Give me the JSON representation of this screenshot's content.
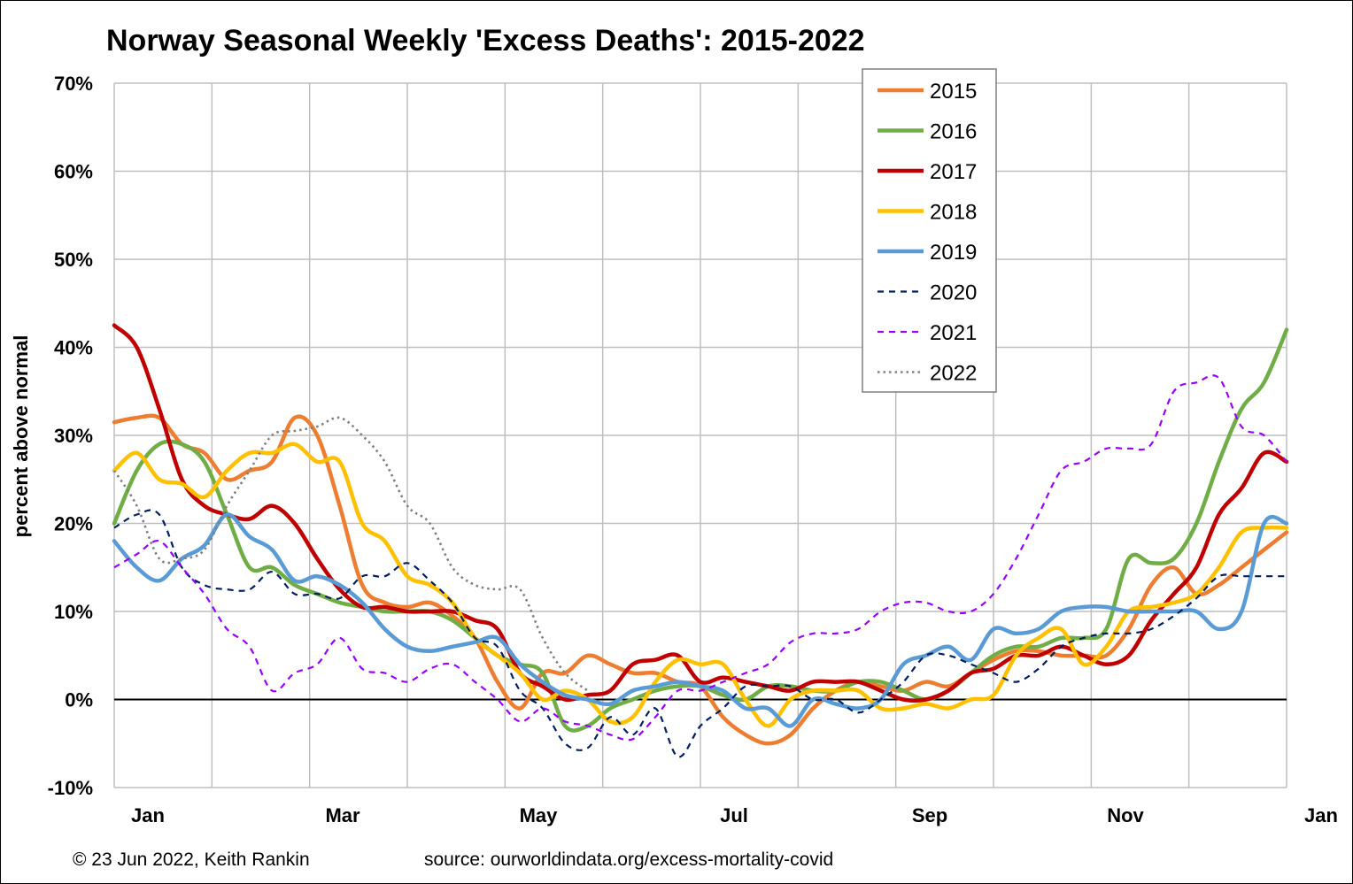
{
  "chart_data": {
    "type": "line",
    "title": "Norway Seasonal Weekly 'Excess Deaths': 2015-2022",
    "xlabel": "",
    "ylabel": "percent above normal",
    "x_ticks": [
      "Jan",
      "Mar",
      "May",
      "Jul",
      "Sep",
      "Nov",
      "Jan"
    ],
    "x_unit": "week of year",
    "xlim": [
      1,
      53
    ],
    "ylim": [
      -10,
      70
    ],
    "y_ticks": [
      "70%",
      "60%",
      "50%",
      "40%",
      "30%",
      "20%",
      "10%",
      "0%",
      "-10%"
    ],
    "grid": true,
    "legend_position": "top-right",
    "series": [
      {
        "name": "2015",
        "color": "#ED7D31",
        "style": "solid",
        "x": [
          1,
          2,
          3,
          4,
          5,
          6,
          7,
          8,
          9,
          10,
          11,
          12,
          13,
          14,
          15,
          16,
          17,
          18,
          19,
          20,
          21,
          22,
          23,
          24,
          25,
          26,
          27,
          28,
          29,
          30,
          31,
          32,
          33,
          34,
          35,
          36,
          37,
          38,
          39,
          40,
          41,
          42,
          43,
          44,
          45,
          46,
          47,
          48,
          49,
          50,
          51,
          52,
          53
        ],
        "y": [
          31.5,
          32,
          32,
          29,
          28,
          25,
          26,
          27,
          32,
          30,
          22,
          13,
          11,
          10.5,
          11,
          9.5,
          7,
          2,
          -1,
          3,
          3,
          5,
          4,
          3,
          3,
          2,
          1.5,
          -2,
          -4,
          -5,
          -4,
          -1,
          1,
          2,
          1.5,
          1,
          2,
          1.5,
          3,
          4.5,
          5.5,
          5.5,
          5,
          5,
          5,
          8,
          13,
          15,
          12,
          13,
          15,
          17,
          19
        ]
      },
      {
        "name": "2016",
        "color": "#70AD47",
        "style": "solid",
        "x": [
          1,
          2,
          3,
          4,
          5,
          6,
          7,
          8,
          9,
          10,
          11,
          12,
          13,
          14,
          15,
          16,
          17,
          18,
          19,
          20,
          21,
          22,
          23,
          24,
          25,
          26,
          27,
          28,
          29,
          30,
          31,
          32,
          33,
          34,
          35,
          36,
          37,
          38,
          39,
          40,
          41,
          42,
          43,
          44,
          45,
          46,
          47,
          48,
          49,
          50,
          51,
          52,
          53
        ],
        "y": [
          20,
          26,
          29,
          29,
          27,
          21,
          15,
          15,
          13,
          12,
          11,
          10.5,
          10,
          10,
          10,
          9,
          7,
          5,
          4,
          3,
          -3,
          -3,
          -1,
          0,
          1,
          1.5,
          1.5,
          0.5,
          0,
          1.5,
          1.5,
          1,
          1,
          2,
          2,
          1,
          0,
          1,
          3,
          5,
          6,
          6,
          7,
          7,
          8,
          16,
          15.5,
          16,
          20,
          27,
          33,
          36,
          42
        ]
      },
      {
        "name": "2017",
        "color": "#C00000",
        "style": "solid",
        "x": [
          1,
          2,
          3,
          4,
          5,
          6,
          7,
          8,
          9,
          10,
          11,
          12,
          13,
          14,
          15,
          16,
          17,
          18,
          19,
          20,
          21,
          22,
          23,
          24,
          25,
          26,
          27,
          28,
          29,
          30,
          31,
          32,
          33,
          34,
          35,
          36,
          37,
          38,
          39,
          40,
          41,
          42,
          43,
          44,
          45,
          46,
          47,
          48,
          49,
          50,
          51,
          52,
          53
        ],
        "y": [
          42.5,
          40,
          33,
          25,
          22,
          21,
          20.5,
          22,
          20,
          16,
          12.5,
          10.5,
          10.5,
          10,
          10,
          10,
          9,
          8,
          3,
          1.5,
          0,
          0.5,
          1,
          4,
          4.5,
          5,
          2,
          2.5,
          2,
          1.5,
          1,
          2,
          2,
          2,
          1,
          0,
          0,
          1,
          3,
          3.5,
          5,
          5,
          6,
          5,
          4,
          5,
          9,
          12,
          15,
          21,
          24,
          28,
          27
        ]
      },
      {
        "name": "2018",
        "color": "#FFC000",
        "style": "solid",
        "x": [
          1,
          2,
          3,
          4,
          5,
          6,
          7,
          8,
          9,
          10,
          11,
          12,
          13,
          14,
          15,
          16,
          17,
          18,
          19,
          20,
          21,
          22,
          23,
          24,
          25,
          26,
          27,
          28,
          29,
          30,
          31,
          32,
          33,
          34,
          35,
          36,
          37,
          38,
          39,
          40,
          41,
          42,
          43,
          44,
          45,
          46,
          47,
          48,
          49,
          50,
          51,
          52,
          53
        ],
        "y": [
          26,
          28,
          25,
          24.5,
          23,
          26,
          28,
          28,
          29,
          27,
          27,
          20,
          18,
          14,
          13,
          11,
          7,
          5,
          3,
          0,
          1,
          0,
          -2.5,
          -2,
          2,
          4.5,
          4,
          4,
          0,
          -3,
          0,
          1,
          1,
          1,
          -1,
          -1,
          -0.5,
          -1,
          0,
          0.5,
          5,
          7,
          8,
          4,
          6,
          10,
          10.5,
          11,
          12,
          15,
          19,
          19.5,
          19.5
        ]
      },
      {
        "name": "2019",
        "color": "#5B9BD5",
        "style": "solid",
        "x": [
          1,
          2,
          3,
          4,
          5,
          6,
          7,
          8,
          9,
          10,
          11,
          12,
          13,
          14,
          15,
          16,
          17,
          18,
          19,
          20,
          21,
          22,
          23,
          24,
          25,
          26,
          27,
          28,
          29,
          30,
          31,
          32,
          33,
          34,
          35,
          36,
          37,
          38,
          39,
          40,
          41,
          42,
          43,
          44,
          45,
          46,
          47,
          48,
          49,
          50,
          51,
          52,
          53
        ],
        "y": [
          18,
          15,
          13.5,
          16,
          17.5,
          21,
          18.5,
          17,
          13.5,
          14,
          13,
          11,
          8,
          6,
          5.5,
          6,
          6.5,
          7,
          4,
          2,
          0.5,
          0,
          -0.5,
          1,
          1.5,
          2,
          1.5,
          1,
          -1,
          -1,
          -3,
          0,
          -0.5,
          -1,
          0,
          4,
          5,
          6,
          4.5,
          8,
          7.5,
          8,
          10,
          10.5,
          10.5,
          10,
          10,
          10,
          10,
          8,
          10,
          20,
          20
        ]
      },
      {
        "name": "2020",
        "color": "#002060",
        "style": "dashed",
        "x": [
          1,
          2,
          3,
          4,
          5,
          6,
          7,
          8,
          9,
          10,
          11,
          12,
          13,
          14,
          15,
          16,
          17,
          18,
          19,
          20,
          21,
          22,
          23,
          24,
          25,
          26,
          27,
          28,
          29,
          30,
          31,
          32,
          33,
          34,
          35,
          36,
          37,
          38,
          39,
          40,
          41,
          42,
          43,
          44,
          45,
          46,
          47,
          48,
          49,
          50,
          51,
          52,
          53
        ],
        "y": [
          19.5,
          21,
          21,
          15,
          13,
          12.5,
          12.5,
          14.5,
          12,
          12,
          11.5,
          14,
          14,
          15.5,
          13.5,
          11,
          7,
          6,
          1,
          -1,
          -5,
          -5.5,
          -2,
          -4,
          -1,
          -6.5,
          -3,
          -1,
          1.5,
          1.5,
          1.5,
          0,
          0,
          -1.5,
          0,
          2,
          5,
          5,
          4,
          3,
          2,
          3.5,
          6,
          7,
          7.5,
          7.5,
          8,
          9.5,
          11.5,
          14,
          14,
          14,
          14
        ]
      },
      {
        "name": "2021",
        "color": "#9900FF",
        "style": "dashed",
        "x": [
          1,
          2,
          3,
          4,
          5,
          6,
          7,
          8,
          9,
          10,
          11,
          12,
          13,
          14,
          15,
          16,
          17,
          18,
          19,
          20,
          21,
          22,
          23,
          24,
          25,
          26,
          27,
          28,
          29,
          30,
          31,
          32,
          33,
          34,
          35,
          36,
          37,
          38,
          39,
          40,
          41,
          42,
          43,
          44,
          45,
          46,
          47,
          48,
          49,
          50,
          51,
          52,
          53
        ],
        "y": [
          15,
          16.5,
          18,
          15,
          12,
          8,
          6,
          1,
          3,
          4,
          7,
          3.5,
          3,
          2,
          3.5,
          4,
          2,
          0,
          -2.5,
          -1,
          -2.5,
          -3,
          -4,
          -4.5,
          -2,
          1,
          1,
          2,
          3,
          4,
          6.5,
          7.5,
          7.5,
          8,
          10,
          11,
          11,
          10,
          10,
          12,
          16,
          21,
          26,
          27,
          28.5,
          28.5,
          29,
          35,
          36,
          36.5,
          31,
          30,
          27
        ]
      },
      {
        "name": "2022",
        "color": "#808080",
        "style": "dotted",
        "x": [
          1,
          2,
          3,
          4,
          5,
          6,
          7,
          8,
          9,
          10,
          11,
          12,
          13,
          14,
          15,
          16,
          17,
          18,
          19,
          20,
          21,
          22
        ],
        "y": [
          26,
          22,
          16,
          16,
          17,
          22,
          26,
          30,
          30.5,
          31,
          32,
          30,
          27,
          22,
          20,
          15,
          13,
          12.5,
          12.5,
          7,
          3,
          1
        ]
      }
    ]
  }
}
